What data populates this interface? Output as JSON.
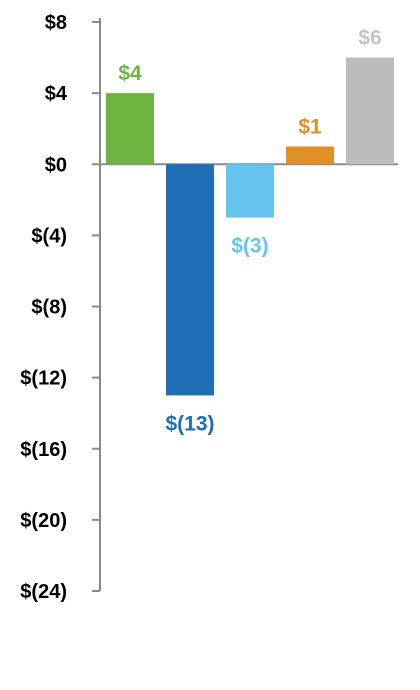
{
  "chart_data": {
    "type": "bar",
    "title": "",
    "xlabel": "",
    "ylabel": "",
    "ylim": [
      -24,
      8
    ],
    "yticks": [
      8,
      4,
      0,
      -4,
      -8,
      -12,
      -16,
      -20,
      -24
    ],
    "ytick_labels": [
      "$8",
      "$4",
      "$0",
      "$(4)",
      "$(8)",
      "$(12)",
      "$(16)",
      "$(20)",
      "$(24)"
    ],
    "grid": false,
    "legend": "none",
    "bars": [
      {
        "value": 4,
        "label": "$4",
        "color": "#6db33f",
        "label_color": "#6db33f"
      },
      {
        "value": -13,
        "label": "$(13)",
        "color": "#1f6db5",
        "label_color": "#1f6db5"
      },
      {
        "value": -3,
        "label": "$(3)",
        "color": "#66c5ef",
        "label_color": "#66c5ef"
      },
      {
        "value": 1,
        "label": "$1",
        "color": "#e18e27",
        "label_color": "#e18e27"
      },
      {
        "value": 6,
        "label": "$6",
        "color": "#bbbcbe",
        "label_color": "#c4c5c7"
      }
    ],
    "axis_color": "#8a8a8a"
  }
}
